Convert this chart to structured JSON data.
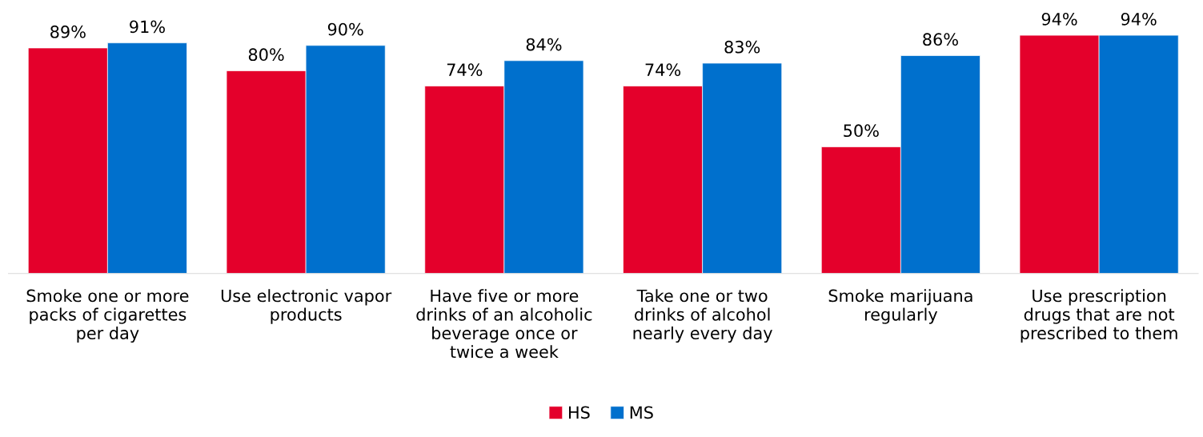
{
  "chart_data": {
    "type": "bar",
    "categories": [
      "Smoke one or more\npacks of cigarettes\nper day",
      "Use electronic vapor\nproducts",
      "Have five or more\ndrinks of an alcoholic\nbeverage once or\ntwice a week",
      "Take one or two\ndrinks of alcohol\nnearly every day",
      "Smoke marijuana\nregularly",
      "Use prescription\ndrugs that are not\nprescribed to them"
    ],
    "series": [
      {
        "name": "HS",
        "color": "#e4002b",
        "values": [
          89,
          80,
          74,
          74,
          50,
          94
        ],
        "value_labels": [
          "89%",
          "80%",
          "74%",
          "74%",
          "50%",
          "94%"
        ]
      },
      {
        "name": "MS",
        "color": "#0070cd",
        "values": [
          91,
          90,
          84,
          83,
          86,
          94
        ],
        "value_labels": [
          "91%",
          "90%",
          "84%",
          "83%",
          "86%",
          "94%"
        ]
      }
    ],
    "grid": false,
    "legend": "bottom"
  }
}
